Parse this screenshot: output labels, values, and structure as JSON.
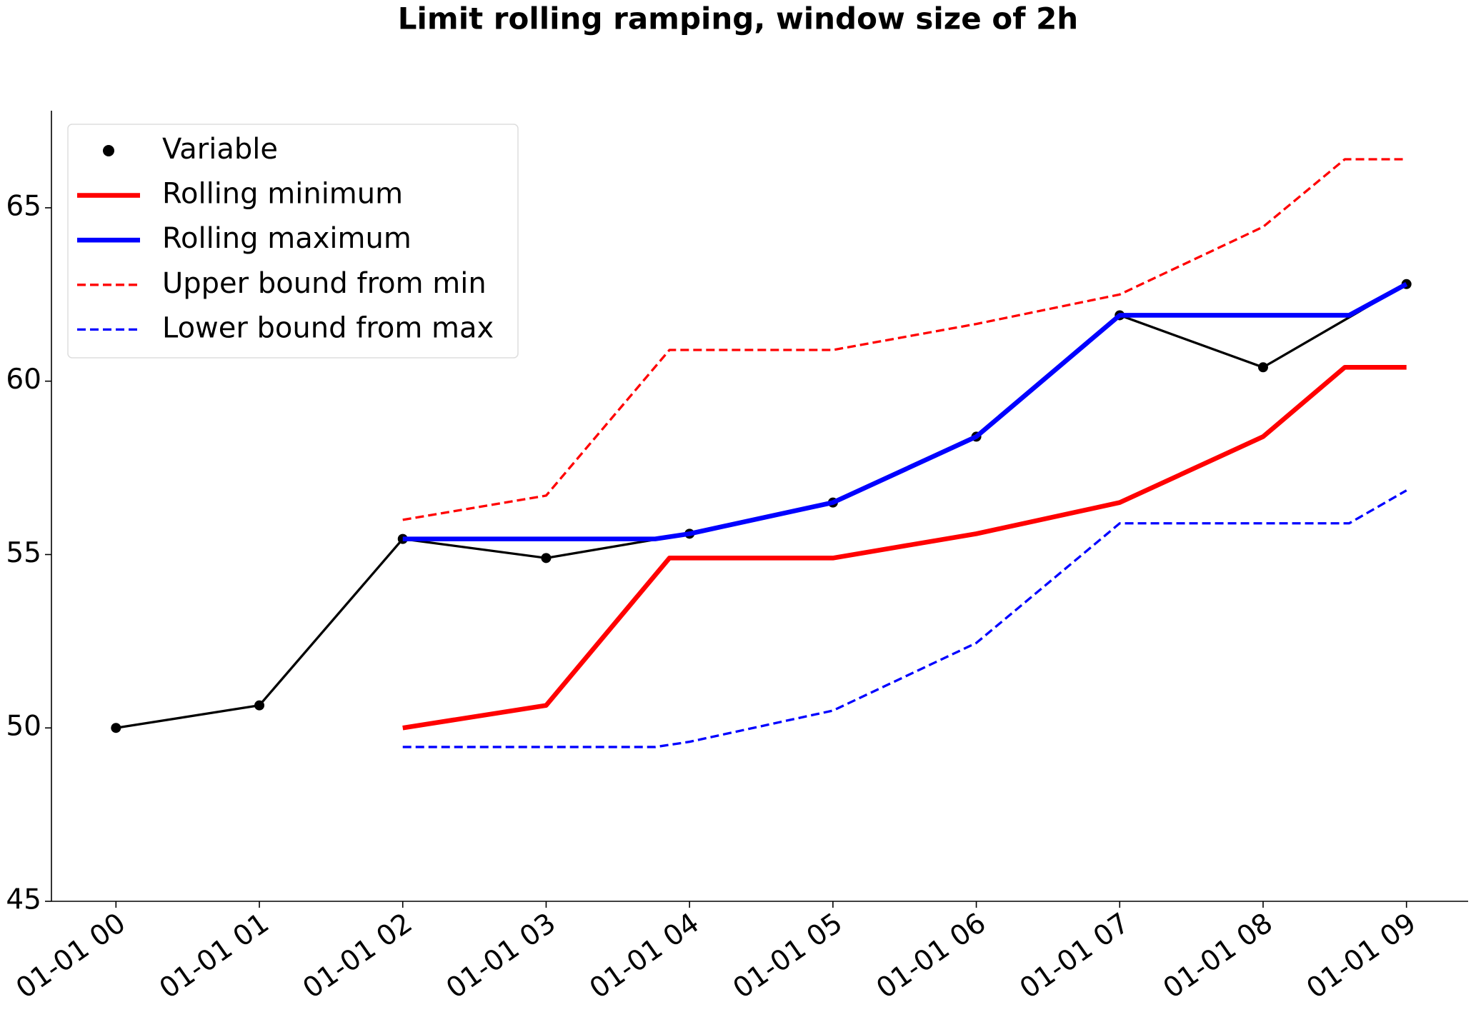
{
  "chart_data": {
    "type": "line",
    "title": "Limit rolling ramping, window size of 2h",
    "xlim": [
      -0.45,
      9.43
    ],
    "ylim": [
      45,
      67.8
    ],
    "xticks": [
      {
        "value": 0,
        "label": "01-01 00"
      },
      {
        "value": 1,
        "label": "01-01 01"
      },
      {
        "value": 2,
        "label": "01-01 02"
      },
      {
        "value": 3,
        "label": "01-01 03"
      },
      {
        "value": 4,
        "label": "01-01 04"
      },
      {
        "value": 5,
        "label": "01-01 05"
      },
      {
        "value": 6,
        "label": "01-01 06"
      },
      {
        "value": 7,
        "label": "01-01 07"
      },
      {
        "value": 8,
        "label": "01-01 08"
      },
      {
        "value": 9,
        "label": "01-01 09"
      }
    ],
    "yticks": [
      45,
      50,
      55,
      60,
      65
    ],
    "legend": "upper left",
    "series": [
      {
        "name": "Variable",
        "color": "#000000",
        "marker": "o",
        "linestyle": "solid",
        "linewidth": 3.3,
        "x": [
          0,
          1,
          2,
          3,
          4,
          5,
          6,
          7,
          8,
          9
        ],
        "values": [
          50.0,
          50.65,
          55.45,
          54.9,
          55.6,
          56.5,
          58.4,
          61.9,
          60.4,
          62.8
        ]
      },
      {
        "name": "Rolling minimum",
        "color": "#ff0000",
        "linestyle": "solid",
        "linewidth": 6.6,
        "x": [
          2,
          3,
          3.86,
          5,
          6,
          7,
          8,
          8.57,
          9
        ],
        "values": [
          50.0,
          50.65,
          54.9,
          54.9,
          55.6,
          56.5,
          58.4,
          60.4,
          60.4
        ]
      },
      {
        "name": "Rolling maximum",
        "color": "#0000ff",
        "linestyle": "solid",
        "linewidth": 6.6,
        "x": [
          2,
          3.76,
          4,
          5,
          6,
          7,
          8.6,
          9
        ],
        "values": [
          55.45,
          55.45,
          55.6,
          56.5,
          58.4,
          61.9,
          61.9,
          62.8
        ]
      },
      {
        "name": "Upper bound from min",
        "color": "#ff0000",
        "linestyle": "dashed",
        "linewidth": 3.3,
        "x": [
          2,
          3,
          3.86,
          5,
          6,
          7,
          8,
          8.57,
          9
        ],
        "values": [
          56.0,
          56.7,
          60.9,
          60.9,
          61.65,
          62.5,
          64.45,
          66.4,
          66.4
        ]
      },
      {
        "name": "Lower bound from max",
        "color": "#0000ff",
        "linestyle": "dashed",
        "linewidth": 3.3,
        "x": [
          2,
          3.76,
          4,
          5,
          6,
          7,
          8.6,
          9
        ],
        "values": [
          49.45,
          49.45,
          49.6,
          50.5,
          52.45,
          55.9,
          55.9,
          56.85
        ]
      }
    ]
  }
}
